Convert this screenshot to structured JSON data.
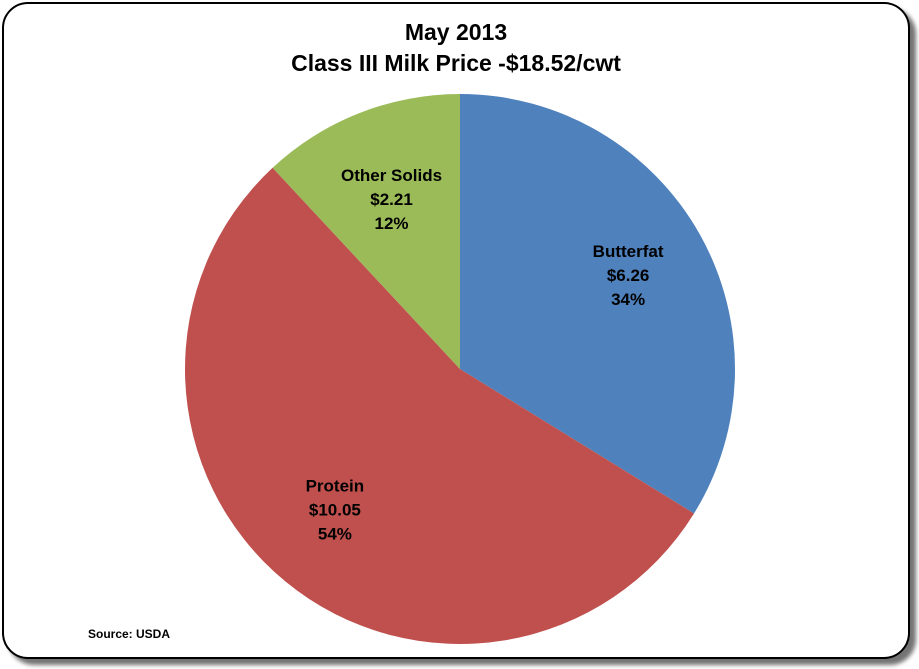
{
  "chart_data": {
    "type": "pie",
    "title": "May 2013",
    "subtitle": "Class III Milk Price -$18.52/cwt",
    "slices": [
      {
        "name": "Butterfat",
        "value": 6.26,
        "value_label": "$6.26",
        "percent": 34,
        "percent_label": "34%",
        "color": "#4F81BD"
      },
      {
        "name": "Protein",
        "value": 10.05,
        "value_label": "$10.05",
        "percent": 54,
        "percent_label": "54%",
        "color": "#C0504D"
      },
      {
        "name": "Other Solids",
        "value": 2.21,
        "value_label": "$2.21",
        "percent": 12,
        "percent_label": "12%",
        "color": "#9BBB59"
      }
    ],
    "start_angle": "12 o'clock",
    "direction": "clockwise",
    "legend": "none"
  },
  "source": "Source: USDA"
}
